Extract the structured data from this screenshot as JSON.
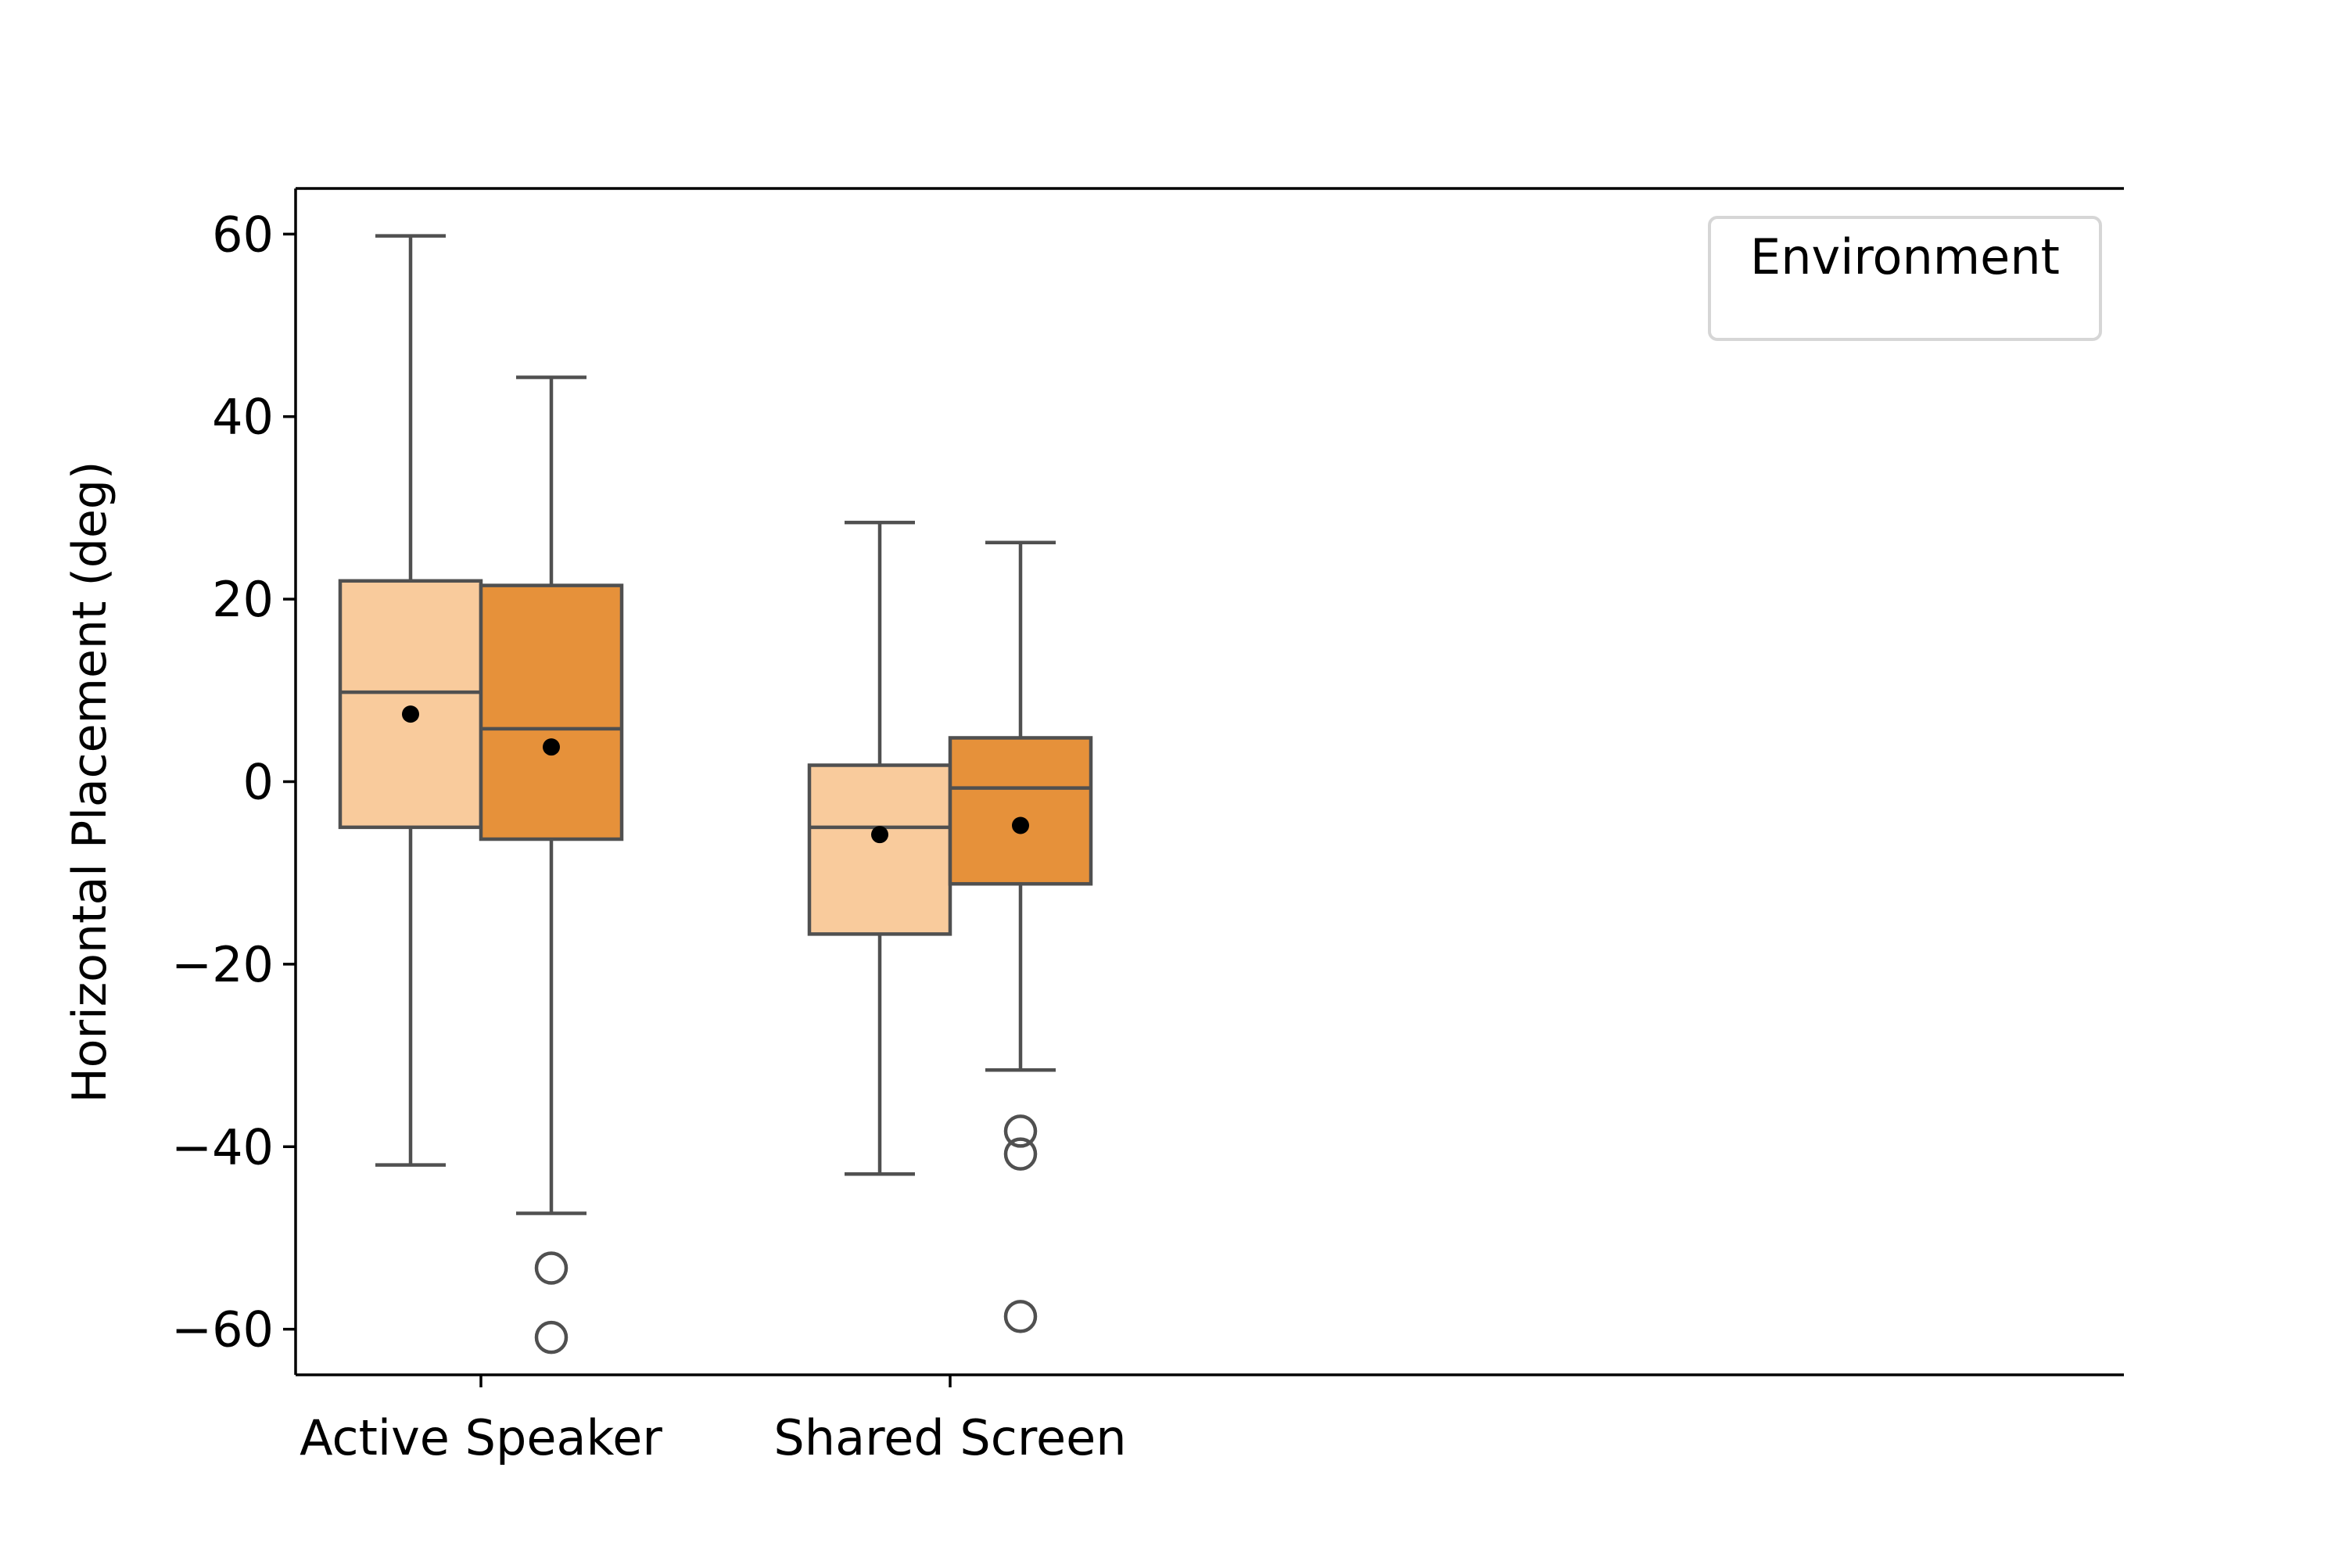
{
  "chart_data": {
    "type": "box",
    "title": "",
    "xlabel": "",
    "ylabel": "Horizontal Placement (deg)",
    "ylim": [
      -65,
      65
    ],
    "yticks": [
      60,
      40,
      20,
      0,
      -20,
      -40,
      -60
    ],
    "ytick_labels": [
      "60",
      "40",
      "20",
      "0",
      "−20",
      "−40",
      "−60"
    ],
    "categories": [
      "Active Speaker",
      "Shared Screen"
    ],
    "legend": {
      "title": "Environment",
      "position": "top-right",
      "entries": []
    },
    "grid": false,
    "series": [
      {
        "color": "#f9cb9c",
        "boxes": [
          {
            "category": "Active Speaker",
            "whisker_low": -42,
            "q1": -5,
            "median": 9.8,
            "q3": 22,
            "whisker_high": 59.8,
            "mean": 7.4,
            "outliers": []
          },
          {
            "category": "Shared Screen",
            "whisker_low": -43,
            "q1": -16.7,
            "median": -5,
            "q3": 1.8,
            "whisker_high": 28.4,
            "mean": -5.8,
            "outliers": []
          }
        ]
      },
      {
        "color": "#e6913a",
        "boxes": [
          {
            "category": "Active Speaker",
            "whisker_low": -47.3,
            "q1": -6.3,
            "median": 5.8,
            "q3": 21.5,
            "whisker_high": 44.3,
            "mean": 3.8,
            "outliers": [
              -53.3,
              -60.9
            ]
          },
          {
            "category": "Shared Screen",
            "whisker_low": -31.6,
            "q1": -11.2,
            "median": -0.7,
            "q3": 4.8,
            "whisker_high": 26.2,
            "mean": -4.8,
            "outliers": [
              -38.3,
              -40.8,
              -58.6
            ]
          }
        ]
      }
    ]
  }
}
